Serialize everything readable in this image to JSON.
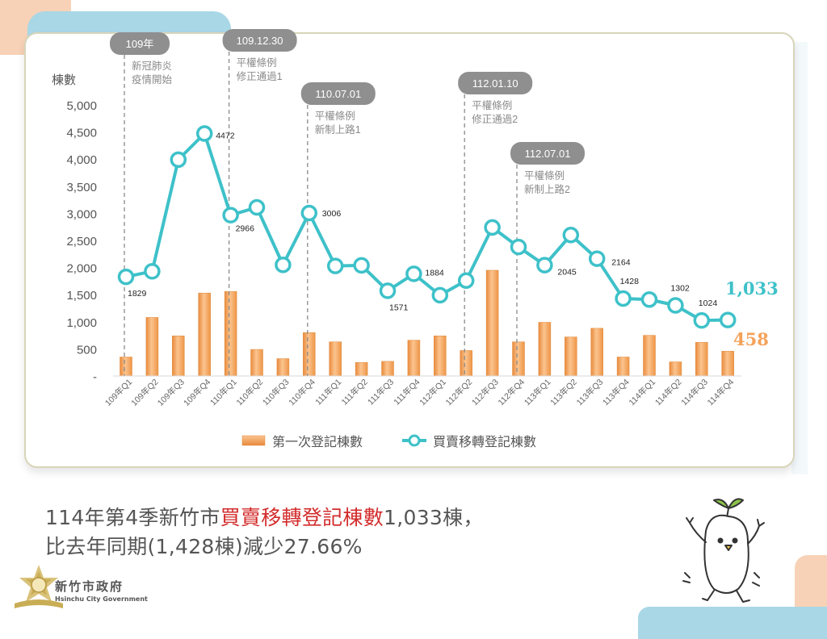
{
  "chart_data": {
    "type": "bar+line",
    "ylabel": "棟數",
    "ylim": [
      0,
      5000
    ],
    "yticks": [
      "-",
      "500",
      "1,000",
      "1,500",
      "2,000",
      "2,500",
      "3,000",
      "3,500",
      "4,000",
      "4,500",
      "5,000"
    ],
    "categories": [
      "109年Q1",
      "109年Q2",
      "109年Q3",
      "109年Q4",
      "110年Q1",
      "110年Q2",
      "110年Q3",
      "110年Q4",
      "111年Q1",
      "111年Q2",
      "111年Q3",
      "111年Q4",
      "112年Q1",
      "112年Q2",
      "112年Q3",
      "112年Q4",
      "113年Q1",
      "113年Q2",
      "113年Q3",
      "113年Q4",
      "114年Q1",
      "114年Q2",
      "114年Q3",
      "114年Q4"
    ],
    "series": [
      {
        "name": "第一次登記棟數",
        "type": "bar",
        "color": "#f5a25a",
        "values": [
          350,
          1080,
          740,
          1530,
          1560,
          490,
          320,
          800,
          630,
          250,
          270,
          660,
          740,
          470,
          1950,
          630,
          990,
          720,
          880,
          350,
          750,
          260,
          620,
          458
        ]
      },
      {
        "name": "買賣移轉登記棟數",
        "type": "line",
        "color": "#3ec1c9",
        "values": [
          1829,
          1930,
          3990,
          4472,
          2966,
          3110,
          2050,
          3006,
          2030,
          2040,
          1571,
          1884,
          1490,
          1760,
          2740,
          2380,
          2045,
          2600,
          2164,
          1428,
          1410,
          1302,
          1024,
          1033
        ]
      }
    ],
    "point_labels": [
      {
        "index": 0,
        "text": "1829"
      },
      {
        "index": 3,
        "text": "4472"
      },
      {
        "index": 4,
        "text": "2966"
      },
      {
        "index": 7,
        "text": "3006"
      },
      {
        "index": 10,
        "text": "1571"
      },
      {
        "index": 11,
        "text": "1884"
      },
      {
        "index": 16,
        "text": "2045"
      },
      {
        "index": 18,
        "text": "2164"
      },
      {
        "index": 19,
        "text": "1428"
      },
      {
        "index": 21,
        "text": "1302"
      },
      {
        "index": 22,
        "text": "1024"
      }
    ],
    "end_labels": {
      "line": "1,033",
      "bar": "458"
    },
    "events": [
      {
        "index": 0,
        "date": "109年",
        "text": [
          "新冠肺炎",
          "疫情開始"
        ]
      },
      {
        "index": 4,
        "date": "109.12.30",
        "text": [
          "平權條例",
          "修正通過1"
        ]
      },
      {
        "index": 7,
        "date": "110.07.01",
        "text": [
          "平權條例",
          "新制上路1"
        ]
      },
      {
        "index": 13,
        "date": "112.01.10",
        "text": [
          "平權條例",
          "修正通過2"
        ]
      },
      {
        "index": 15,
        "date": "112.07.01",
        "text": [
          "平權條例",
          "新制上路2"
        ]
      }
    ],
    "legend_position": "bottom"
  },
  "summary": {
    "line1_prefix": "114年第4季新竹市",
    "line1_highlight": "買賣移轉登記棟數",
    "line1_suffix": "1,033棟，",
    "line2": "比去年同期(1,428棟)減少27.66%"
  },
  "logo": {
    "name_cn": "新竹市政府",
    "name_en": "Hsinchu City Government"
  },
  "colors": {
    "accent_line": "#3ec1c9",
    "accent_bar": "#f5a25a",
    "highlight_text": "#d32b2b"
  }
}
